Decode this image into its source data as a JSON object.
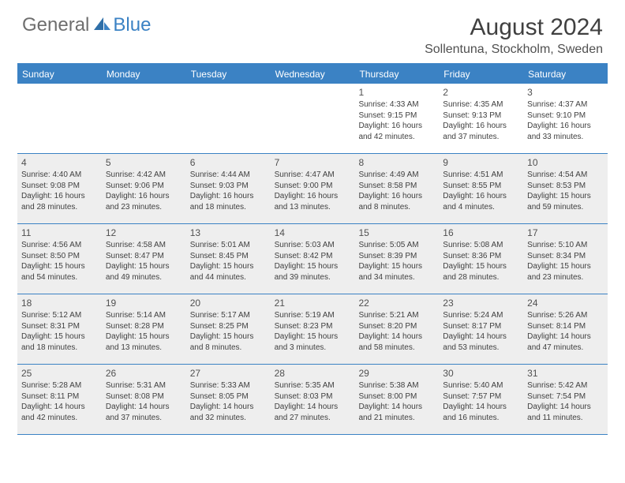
{
  "logo": {
    "part1": "General",
    "part2": "Blue"
  },
  "title": "August 2024",
  "location": "Sollentuna, Stockholm, Sweden",
  "colors": {
    "accent": "#3b82c4",
    "text_dark": "#404040",
    "text_muted": "#6e6e6e",
    "shaded_bg": "#eeeeee",
    "background": "#ffffff"
  },
  "calendar": {
    "type": "table",
    "weekdays": [
      "Sunday",
      "Monday",
      "Tuesday",
      "Wednesday",
      "Thursday",
      "Friday",
      "Saturday"
    ],
    "weeks": [
      [
        {
          "num": "",
          "shaded": false,
          "lines": []
        },
        {
          "num": "",
          "shaded": false,
          "lines": []
        },
        {
          "num": "",
          "shaded": false,
          "lines": []
        },
        {
          "num": "",
          "shaded": false,
          "lines": []
        },
        {
          "num": "1",
          "shaded": false,
          "lines": [
            "Sunrise: 4:33 AM",
            "Sunset: 9:15 PM",
            "Daylight: 16 hours and 42 minutes."
          ]
        },
        {
          "num": "2",
          "shaded": false,
          "lines": [
            "Sunrise: 4:35 AM",
            "Sunset: 9:13 PM",
            "Daylight: 16 hours and 37 minutes."
          ]
        },
        {
          "num": "3",
          "shaded": false,
          "lines": [
            "Sunrise: 4:37 AM",
            "Sunset: 9:10 PM",
            "Daylight: 16 hours and 33 minutes."
          ]
        }
      ],
      [
        {
          "num": "4",
          "shaded": true,
          "lines": [
            "Sunrise: 4:40 AM",
            "Sunset: 9:08 PM",
            "Daylight: 16 hours and 28 minutes."
          ]
        },
        {
          "num": "5",
          "shaded": true,
          "lines": [
            "Sunrise: 4:42 AM",
            "Sunset: 9:06 PM",
            "Daylight: 16 hours and 23 minutes."
          ]
        },
        {
          "num": "6",
          "shaded": true,
          "lines": [
            "Sunrise: 4:44 AM",
            "Sunset: 9:03 PM",
            "Daylight: 16 hours and 18 minutes."
          ]
        },
        {
          "num": "7",
          "shaded": true,
          "lines": [
            "Sunrise: 4:47 AM",
            "Sunset: 9:00 PM",
            "Daylight: 16 hours and 13 minutes."
          ]
        },
        {
          "num": "8",
          "shaded": true,
          "lines": [
            "Sunrise: 4:49 AM",
            "Sunset: 8:58 PM",
            "Daylight: 16 hours and 8 minutes."
          ]
        },
        {
          "num": "9",
          "shaded": true,
          "lines": [
            "Sunrise: 4:51 AM",
            "Sunset: 8:55 PM",
            "Daylight: 16 hours and 4 minutes."
          ]
        },
        {
          "num": "10",
          "shaded": true,
          "lines": [
            "Sunrise: 4:54 AM",
            "Sunset: 8:53 PM",
            "Daylight: 15 hours and 59 minutes."
          ]
        }
      ],
      [
        {
          "num": "11",
          "shaded": true,
          "lines": [
            "Sunrise: 4:56 AM",
            "Sunset: 8:50 PM",
            "Daylight: 15 hours and 54 minutes."
          ]
        },
        {
          "num": "12",
          "shaded": true,
          "lines": [
            "Sunrise: 4:58 AM",
            "Sunset: 8:47 PM",
            "Daylight: 15 hours and 49 minutes."
          ]
        },
        {
          "num": "13",
          "shaded": true,
          "lines": [
            "Sunrise: 5:01 AM",
            "Sunset: 8:45 PM",
            "Daylight: 15 hours and 44 minutes."
          ]
        },
        {
          "num": "14",
          "shaded": true,
          "lines": [
            "Sunrise: 5:03 AM",
            "Sunset: 8:42 PM",
            "Daylight: 15 hours and 39 minutes."
          ]
        },
        {
          "num": "15",
          "shaded": true,
          "lines": [
            "Sunrise: 5:05 AM",
            "Sunset: 8:39 PM",
            "Daylight: 15 hours and 34 minutes."
          ]
        },
        {
          "num": "16",
          "shaded": true,
          "lines": [
            "Sunrise: 5:08 AM",
            "Sunset: 8:36 PM",
            "Daylight: 15 hours and 28 minutes."
          ]
        },
        {
          "num": "17",
          "shaded": true,
          "lines": [
            "Sunrise: 5:10 AM",
            "Sunset: 8:34 PM",
            "Daylight: 15 hours and 23 minutes."
          ]
        }
      ],
      [
        {
          "num": "18",
          "shaded": true,
          "lines": [
            "Sunrise: 5:12 AM",
            "Sunset: 8:31 PM",
            "Daylight: 15 hours and 18 minutes."
          ]
        },
        {
          "num": "19",
          "shaded": true,
          "lines": [
            "Sunrise: 5:14 AM",
            "Sunset: 8:28 PM",
            "Daylight: 15 hours and 13 minutes."
          ]
        },
        {
          "num": "20",
          "shaded": true,
          "lines": [
            "Sunrise: 5:17 AM",
            "Sunset: 8:25 PM",
            "Daylight: 15 hours and 8 minutes."
          ]
        },
        {
          "num": "21",
          "shaded": true,
          "lines": [
            "Sunrise: 5:19 AM",
            "Sunset: 8:23 PM",
            "Daylight: 15 hours and 3 minutes."
          ]
        },
        {
          "num": "22",
          "shaded": true,
          "lines": [
            "Sunrise: 5:21 AM",
            "Sunset: 8:20 PM",
            "Daylight: 14 hours and 58 minutes."
          ]
        },
        {
          "num": "23",
          "shaded": true,
          "lines": [
            "Sunrise: 5:24 AM",
            "Sunset: 8:17 PM",
            "Daylight: 14 hours and 53 minutes."
          ]
        },
        {
          "num": "24",
          "shaded": true,
          "lines": [
            "Sunrise: 5:26 AM",
            "Sunset: 8:14 PM",
            "Daylight: 14 hours and 47 minutes."
          ]
        }
      ],
      [
        {
          "num": "25",
          "shaded": true,
          "lines": [
            "Sunrise: 5:28 AM",
            "Sunset: 8:11 PM",
            "Daylight: 14 hours and 42 minutes."
          ]
        },
        {
          "num": "26",
          "shaded": true,
          "lines": [
            "Sunrise: 5:31 AM",
            "Sunset: 8:08 PM",
            "Daylight: 14 hours and 37 minutes."
          ]
        },
        {
          "num": "27",
          "shaded": true,
          "lines": [
            "Sunrise: 5:33 AM",
            "Sunset: 8:05 PM",
            "Daylight: 14 hours and 32 minutes."
          ]
        },
        {
          "num": "28",
          "shaded": true,
          "lines": [
            "Sunrise: 5:35 AM",
            "Sunset: 8:03 PM",
            "Daylight: 14 hours and 27 minutes."
          ]
        },
        {
          "num": "29",
          "shaded": true,
          "lines": [
            "Sunrise: 5:38 AM",
            "Sunset: 8:00 PM",
            "Daylight: 14 hours and 21 minutes."
          ]
        },
        {
          "num": "30",
          "shaded": true,
          "lines": [
            "Sunrise: 5:40 AM",
            "Sunset: 7:57 PM",
            "Daylight: 14 hours and 16 minutes."
          ]
        },
        {
          "num": "31",
          "shaded": true,
          "lines": [
            "Sunrise: 5:42 AM",
            "Sunset: 7:54 PM",
            "Daylight: 14 hours and 11 minutes."
          ]
        }
      ]
    ]
  }
}
